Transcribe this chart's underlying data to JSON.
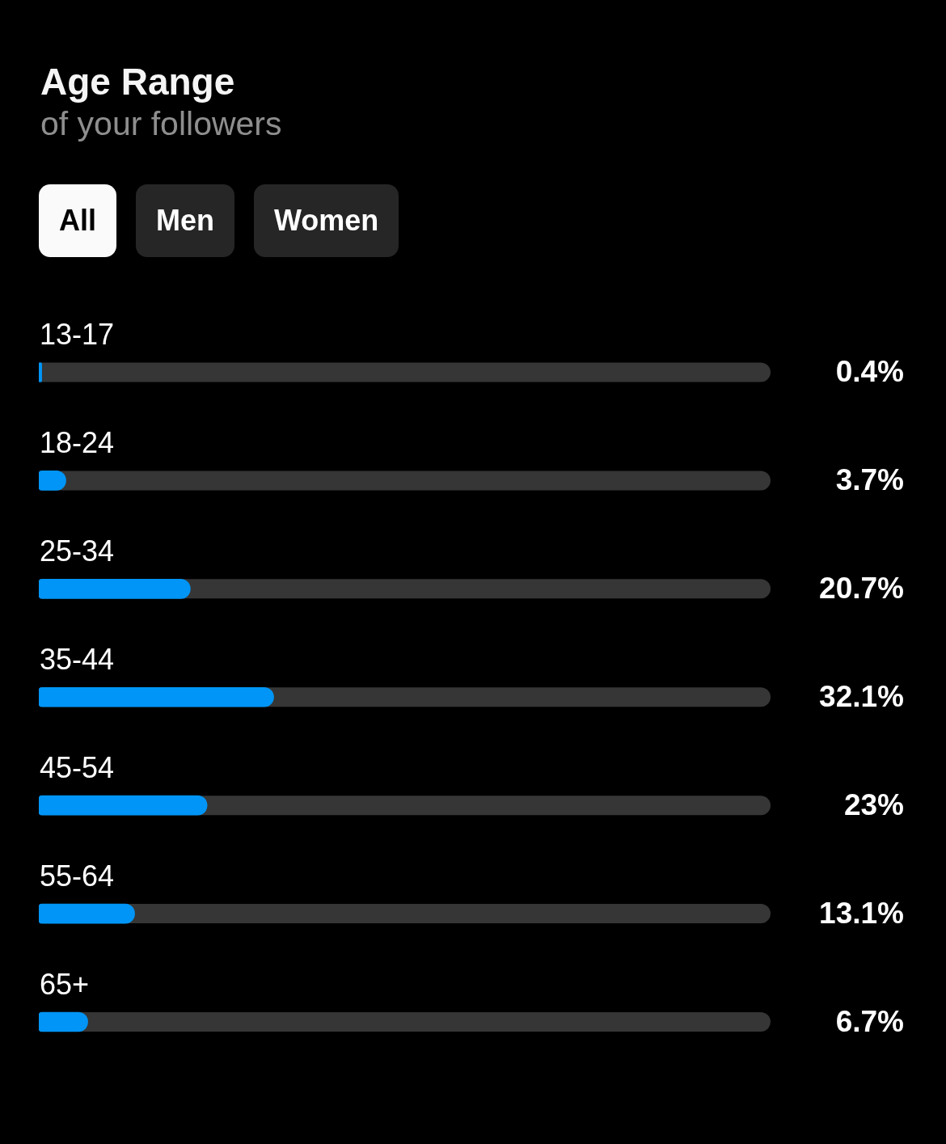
{
  "chart_data": {
    "type": "bar",
    "orientation": "horizontal",
    "title": "Age Range",
    "subtitle": "of your followers",
    "annotations": [
      "All",
      "Men",
      "Women"
    ],
    "categories": [
      "13-17",
      "18-24",
      "25-34",
      "35-44",
      "45-54",
      "55-64",
      "65+"
    ],
    "values": [
      0.4,
      3.7,
      20.7,
      32.1,
      23,
      13.1,
      6.7
    ],
    "value_labels": [
      "0.4%",
      "3.7%",
      "20.7%",
      "32.1%",
      "23%",
      "13.1%",
      "6.7%"
    ],
    "color": "#0095f6",
    "xlim": [
      0,
      100
    ],
    "tick_labels": "y"
  }
}
